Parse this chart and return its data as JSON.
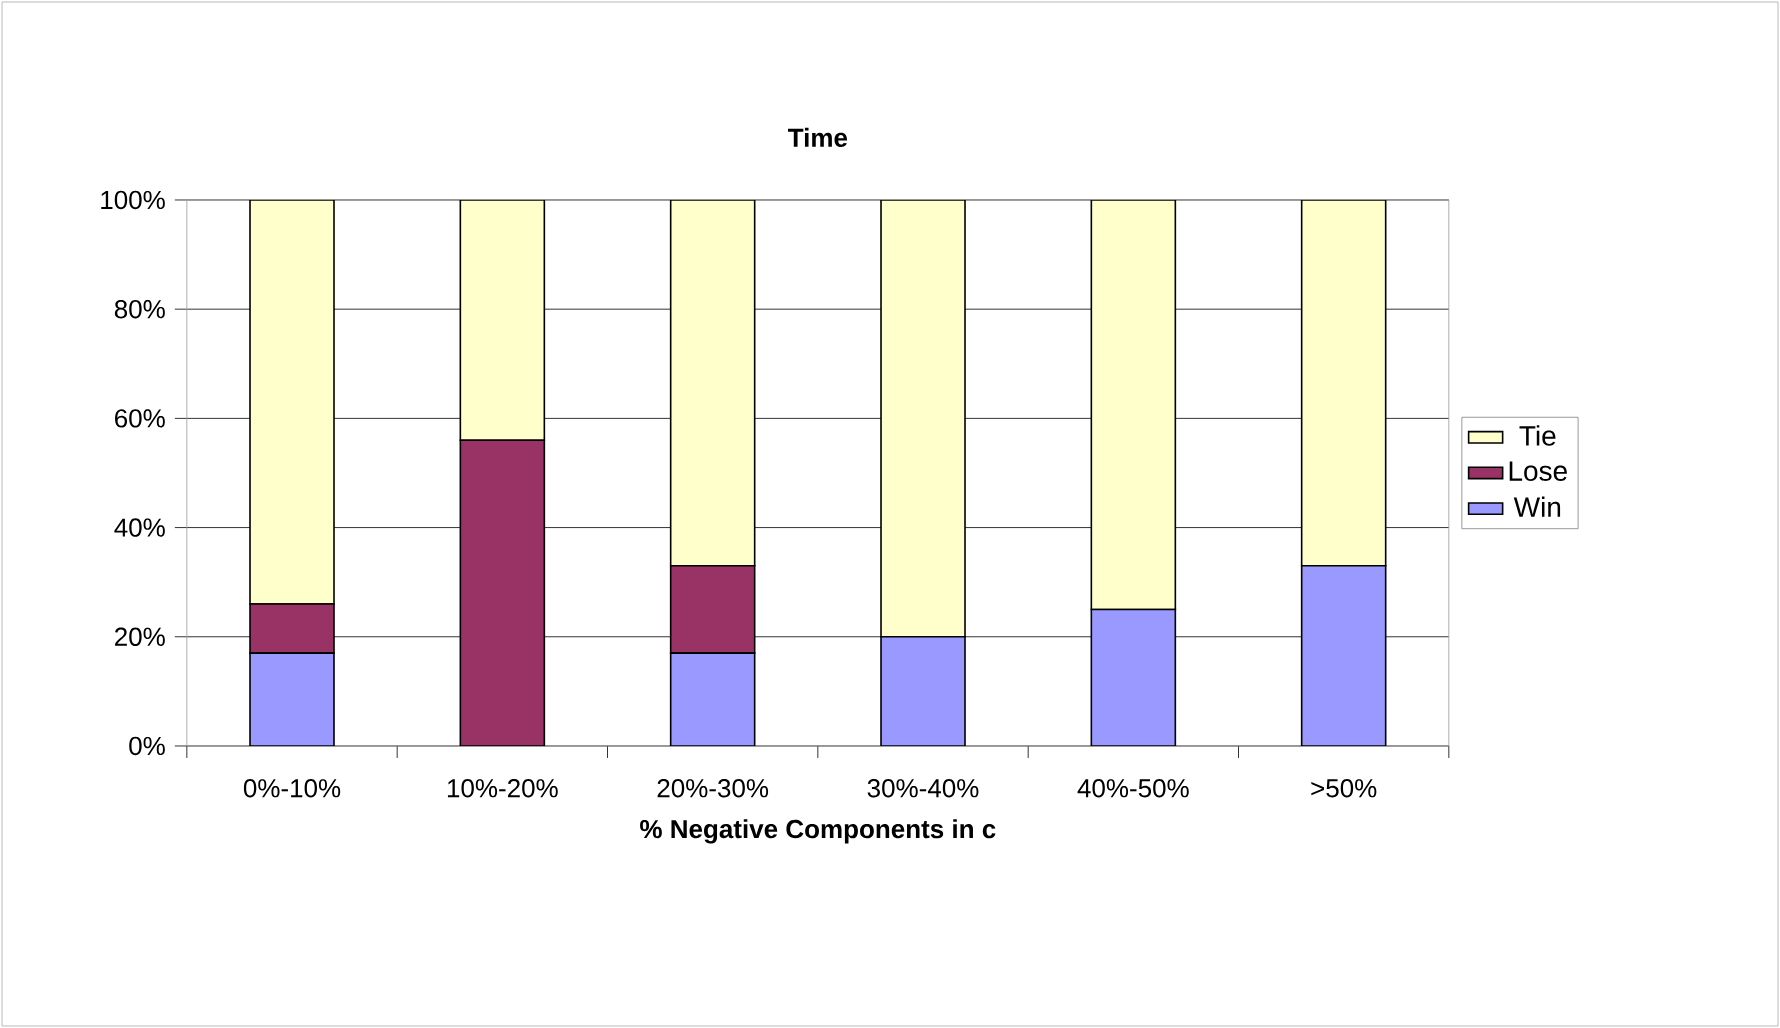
{
  "chart_data": {
    "type": "bar",
    "stacked": true,
    "title": "Time",
    "xlabel": "% Negative Components in c",
    "categories": [
      "0%-10%",
      "10%-20%",
      "20%-30%",
      "30%-40%",
      "40%-50%",
      ">50%"
    ],
    "series": [
      {
        "name": "Win",
        "color": "#9999ff",
        "values": [
          17,
          0,
          17,
          20,
          25,
          33
        ]
      },
      {
        "name": "Lose",
        "color": "#993366",
        "values": [
          9,
          56,
          16,
          0,
          0,
          0
        ]
      },
      {
        "name": "Tie",
        "color": "#ffffcc",
        "values": [
          74,
          44,
          67,
          80,
          75,
          67
        ]
      }
    ],
    "ylim": [
      0,
      100
    ],
    "yticks": [
      {
        "value": 0,
        "label": "0%"
      },
      {
        "value": 20,
        "label": "20%"
      },
      {
        "value": 40,
        "label": "40%"
      },
      {
        "value": 60,
        "label": "60%"
      },
      {
        "value": 80,
        "label": "80%"
      },
      {
        "value": 100,
        "label": "100%"
      }
    ],
    "grid": "y",
    "legend": "right"
  }
}
